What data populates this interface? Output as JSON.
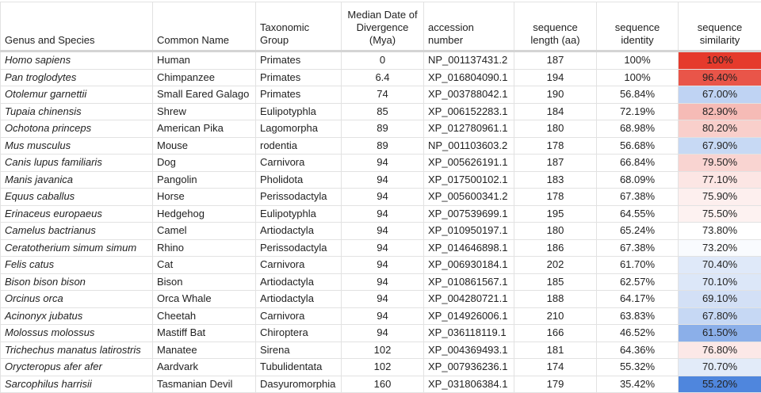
{
  "headers": [
    "Genus and Species",
    "Common Name",
    "Taxonomic Group",
    "Median Date of Divergence (Mya)",
    "accession number",
    "sequence length (aa)",
    "sequence identity",
    "sequence similarity"
  ],
  "color_scale": {
    "min_color": "#4f86dd",
    "mid_color": "#ffffff",
    "max_color": "#e53a2c",
    "min": 55.2,
    "mid": 73.8,
    "max": 100
  },
  "rows": [
    {
      "species": "Homo sapiens",
      "common": "Human",
      "group": "Primates",
      "mya": "0",
      "accession": "NP_001137431.2",
      "length": "187",
      "identity": "100%",
      "similarity": "100%",
      "sim_value": 100
    },
    {
      "species": "Pan troglodytes",
      "common": "Chimpanzee",
      "group": "Primates",
      "mya": "6.4",
      "accession": "XP_016804090.1",
      "length": "194",
      "identity": "100%",
      "similarity": "96.40%",
      "sim_value": 96.4
    },
    {
      "species": "Otolemur garnettii",
      "common": "Small Eared Galago",
      "group": "Primates",
      "mya": "74",
      "accession": "XP_003788042.1",
      "length": "190",
      "identity": "56.84%",
      "similarity": "67.00%",
      "sim_value": 67.0
    },
    {
      "species": "Tupaia chinensis",
      "common": "Shrew",
      "group": "Eulipotyphla",
      "mya": "85",
      "accession": "XP_006152283.1",
      "length": "184",
      "identity": "72.19%",
      "similarity": "82.90%",
      "sim_value": 82.9
    },
    {
      "species": "Ochotona princeps",
      "common": "American Pika",
      "group": "Lagomorpha",
      "mya": "89",
      "accession": "XP_012780961.1",
      "length": "180",
      "identity": "68.98%",
      "similarity": "80.20%",
      "sim_value": 80.2
    },
    {
      "species": "Mus musculus",
      "common": "Mouse",
      "group": "rodentia",
      "mya": "89",
      "accession": "NP_001103603.2",
      "length": "178",
      "identity": "56.68%",
      "similarity": "67.90%",
      "sim_value": 67.9
    },
    {
      "species": "Canis lupus familiaris",
      "common": "Dog",
      "group": "Carnivora",
      "mya": "94",
      "accession": "XP_005626191.1",
      "length": "187",
      "identity": "66.84%",
      "similarity": "79.50%",
      "sim_value": 79.5
    },
    {
      "species": "Manis javanica",
      "common": "Pangolin",
      "group": "Pholidota",
      "mya": "94",
      "accession": "XP_017500102.1",
      "length": "183",
      "identity": "68.09%",
      "similarity": "77.10%",
      "sim_value": 77.1
    },
    {
      "species": "Equus caballus",
      "common": "Horse",
      "group": "Perissodactyla",
      "mya": "94",
      "accession": "XP_005600341.2",
      "length": "178",
      "identity": "67.38%",
      "similarity": "75.90%",
      "sim_value": 75.9
    },
    {
      "species": "Erinaceus europaeus",
      "common": "Hedgehog",
      "group": "Eulipotyphla",
      "mya": "94",
      "accession": "XP_007539699.1",
      "length": "195",
      "identity": "64.55%",
      "similarity": "75.50%",
      "sim_value": 75.5
    },
    {
      "species": "Camelus bactrianus",
      "common": "Camel",
      "group": "Artiodactyla",
      "mya": "94",
      "accession": "XP_010950197.1",
      "length": "180",
      "identity": "65.24%",
      "similarity": "73.80%",
      "sim_value": 73.8
    },
    {
      "species": "Ceratotherium simum simum",
      "common": "Rhino",
      "group": "Perissodactyla",
      "mya": "94",
      "accession": "XP_014646898.1",
      "length": "186",
      "identity": "67.38%",
      "similarity": "73.20%",
      "sim_value": 73.2
    },
    {
      "species": "Felis catus",
      "common": "Cat",
      "group": "Carnivora",
      "mya": "94",
      "accession": "XP_006930184.1",
      "length": "202",
      "identity": "61.70%",
      "similarity": "70.40%",
      "sim_value": 70.4
    },
    {
      "species": "Bison bison bison",
      "common": "Bison",
      "group": "Artiodactyla",
      "mya": "94",
      "accession": "XP_010861567.1",
      "length": "185",
      "identity": "62.57%",
      "similarity": "70.10%",
      "sim_value": 70.1
    },
    {
      "species": "Orcinus orca",
      "common": "Orca Whale",
      "group": "Artiodactyla",
      "mya": "94",
      "accession": "XP_004280721.1",
      "length": "188",
      "identity": "64.17%",
      "similarity": "69.10%",
      "sim_value": 69.1
    },
    {
      "species": "Acinonyx jubatus",
      "common": "Cheetah",
      "group": "Carnivora",
      "mya": "94",
      "accession": "XP_014926006.1",
      "length": "210",
      "identity": "63.83%",
      "similarity": "67.80%",
      "sim_value": 67.8
    },
    {
      "species": "Molossus molossus",
      "common": "Mastiff Bat",
      "group": "Chiroptera",
      "mya": "94",
      "accession": "XP_036118119.1",
      "length": "166",
      "identity": "46.52%",
      "similarity": "61.50%",
      "sim_value": 61.5
    },
    {
      "species": "Trichechus manatus latirostris",
      "common": "Manatee",
      "group": "Sirena",
      "mya": "102",
      "accession": "XP_004369493.1",
      "length": "181",
      "identity": "64.36%",
      "similarity": "76.80%",
      "sim_value": 76.8
    },
    {
      "species": "Orycteropus afer afer",
      "common": "Aardvark",
      "group": "Tubulidentata",
      "mya": "102",
      "accession": "XP_007936236.1",
      "length": "174",
      "identity": "55.32%",
      "similarity": "70.70%",
      "sim_value": 70.7
    },
    {
      "species": "Sarcophilus harrisii",
      "common": "Tasmanian Devil",
      "group": "Dasyuromorphia",
      "mya": "160",
      "accession": "XP_031806384.1",
      "length": "179",
      "identity": "35.42%",
      "similarity": "55.20%",
      "sim_value": 55.2
    }
  ]
}
